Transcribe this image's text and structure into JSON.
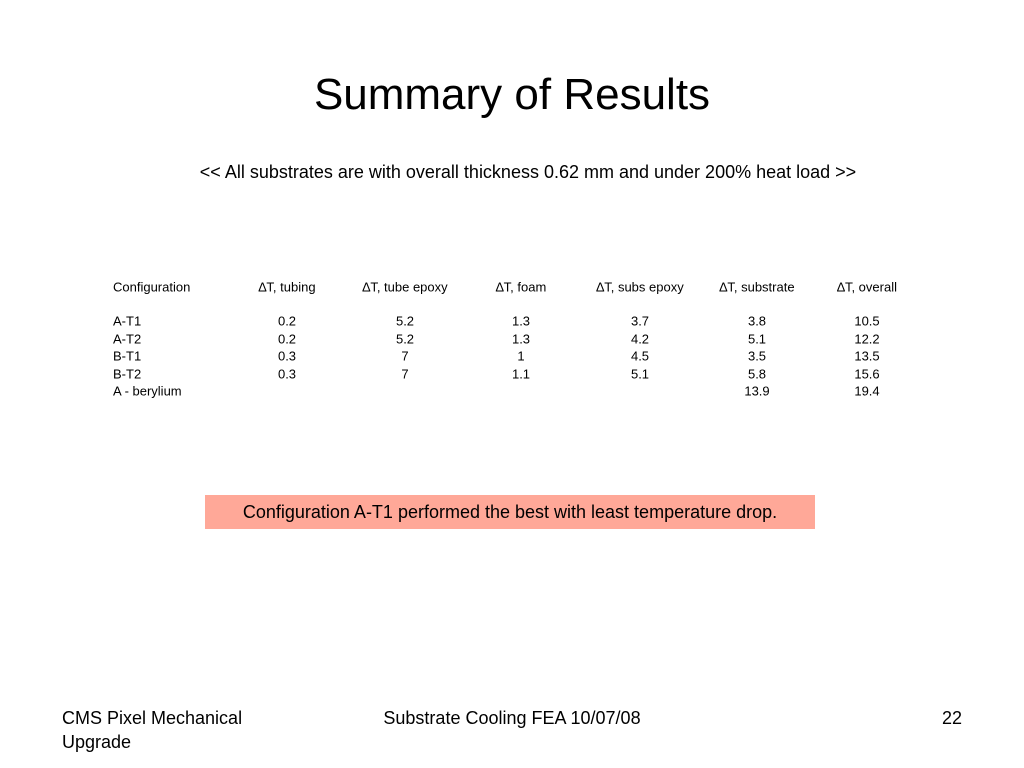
{
  "title": "Summary of Results",
  "subtitle": "<< All substrates are with overall thickness 0.62 mm and under 200% heat load  >>",
  "table": {
    "header": [
      "Configuration",
      "∆T, tubing",
      "∆T, tube epoxy",
      "∆T, foam",
      "∆T, subs epoxy",
      "∆T, substrate",
      "∆T, overall"
    ],
    "rows": [
      [
        "A-T1",
        0.2,
        5.2,
        1.3,
        3.7,
        3.8,
        10.5
      ],
      [
        "A-T2",
        0.2,
        5.2,
        1.3,
        4.2,
        5.1,
        12.2
      ],
      [
        "B-T1",
        0.3,
        7,
        1,
        4.5,
        3.5,
        13.5
      ],
      [
        "B-T2",
        0.3,
        7,
        1.1,
        5.1,
        5.8,
        15.6
      ],
      [
        "A - berylium",
        null,
        null,
        null,
        null,
        13.9,
        19.4
      ]
    ]
  },
  "note": "Configuration A-T1 performed the best with least temperature drop.",
  "footer": {
    "left": "CMS Pixel Mechanical Upgrade",
    "center": "Substrate Cooling FEA 10/07/08",
    "right": "22"
  }
}
